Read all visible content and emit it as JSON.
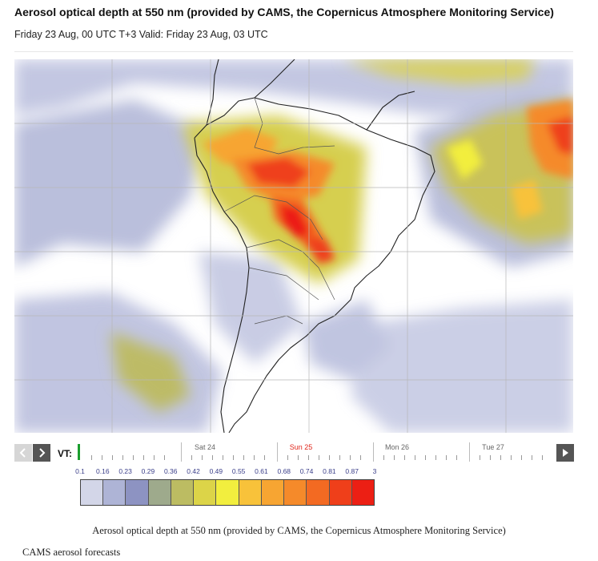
{
  "title": "Aerosol optical depth at 550 nm (provided by CAMS, the Copernicus Atmosphere Monitoring Service)",
  "subtitle": "Friday 23 Aug, 00 UTC T+3 Valid: Friday 23 Aug, 03 UTC",
  "timeline": {
    "vt_label": "VT:",
    "days": [
      {
        "label": "Sat 24",
        "current": false
      },
      {
        "label": "Sun 25",
        "current": true
      },
      {
        "label": "Mon 26",
        "current": false
      },
      {
        "label": "Tue 27",
        "current": false
      }
    ],
    "icons": {
      "prev": "chevron-left-icon",
      "next": "chevron-right-icon",
      "play": "play-icon"
    }
  },
  "legend": {
    "labels": [
      "0.1",
      "0.16",
      "0.23",
      "0.29",
      "0.36",
      "0.42",
      "0.49",
      "0.55",
      "0.61",
      "0.68",
      "0.74",
      "0.81",
      "0.87",
      "3"
    ],
    "colors": [
      "#d3d6e8",
      "#aeb4d6",
      "#8d93c2",
      "#9eaa8c",
      "#bcbc62",
      "#dcd448",
      "#f2ee3e",
      "#f8c23a",
      "#f7a532",
      "#f58a2a",
      "#f36a22",
      "#ef3f1a",
      "#ec1f14"
    ]
  },
  "caption": "Aerosol optical depth at 550 nm (provided by CAMS, the Copernicus Atmosphere Monitoring Service)",
  "footnote": "CAMS aerosol forecasts"
}
